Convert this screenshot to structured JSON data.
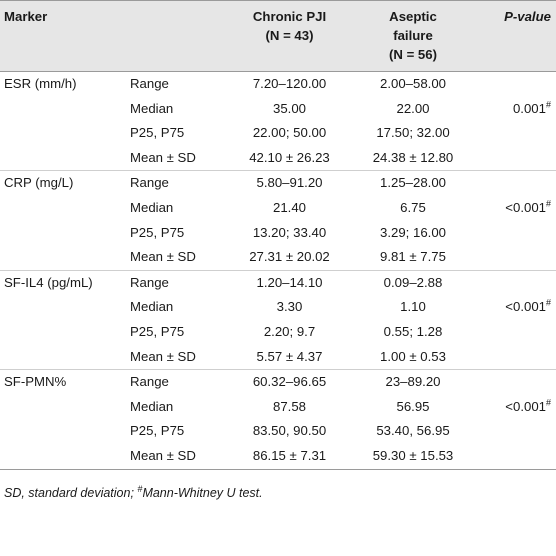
{
  "headers": {
    "marker": "Marker",
    "pji_line1": "Chronic PJI",
    "pji_line2": "(N = 43)",
    "aseptic_line1": "Aseptic",
    "aseptic_line2": "failure",
    "aseptic_line3": "(N = 56)",
    "pvalue": "P-value"
  },
  "groups": [
    {
      "marker": "ESR (mm/h)",
      "pvalue": "0.001",
      "pvalue_sup": "#",
      "rows": [
        {
          "stat": "Range",
          "pji": "7.20–120.00",
          "aseptic": "2.00–58.00"
        },
        {
          "stat": "Median",
          "pji": "35.00",
          "aseptic": "22.00"
        },
        {
          "stat": "P25, P75",
          "pji": "22.00; 50.00",
          "aseptic": "17.50; 32.00"
        },
        {
          "stat": "Mean ± SD",
          "pji": "42.10 ± 26.23",
          "aseptic": "24.38 ± 12.80"
        }
      ]
    },
    {
      "marker": "CRP (mg/L)",
      "pvalue": "<0.001",
      "pvalue_sup": "#",
      "rows": [
        {
          "stat": "Range",
          "pji": "5.80–91.20",
          "aseptic": "1.25–28.00"
        },
        {
          "stat": "Median",
          "pji": "21.40",
          "aseptic": "6.75"
        },
        {
          "stat": "P25, P75",
          "pji": "13.20; 33.40",
          "aseptic": "3.29; 16.00"
        },
        {
          "stat": "Mean ± SD",
          "pji": "27.31 ± 20.02",
          "aseptic": "9.81 ± 7.75"
        }
      ]
    },
    {
      "marker": "SF-IL4 (pg/mL)",
      "pvalue": "<0.001",
      "pvalue_sup": "#",
      "rows": [
        {
          "stat": "Range",
          "pji": "1.20–14.10",
          "aseptic": "0.09–2.88"
        },
        {
          "stat": "Median",
          "pji": "3.30",
          "aseptic": "1.10"
        },
        {
          "stat": "P25, P75",
          "pji": "2.20; 9.7",
          "aseptic": "0.55; 1.28"
        },
        {
          "stat": "Mean ± SD",
          "pji": "5.57 ± 4.37",
          "aseptic": "1.00 ± 0.53"
        }
      ]
    },
    {
      "marker": "SF-PMN%",
      "pvalue": "<0.001",
      "pvalue_sup": "#",
      "rows": [
        {
          "stat": "Range",
          "pji": "60.32–96.65",
          "aseptic": "23–89.20"
        },
        {
          "stat": "Median",
          "pji": "87.58",
          "aseptic": "56.95"
        },
        {
          "stat": "P25, P75",
          "pji": "83.50, 90.50",
          "aseptic": "53.40, 56.95"
        },
        {
          "stat": "Mean ± SD",
          "pji": "86.15 ± 7.31",
          "aseptic": "59.30 ± 15.53"
        }
      ]
    }
  ],
  "footnote": {
    "part1": "SD, standard deviation; ",
    "sup": "#",
    "part2": "Mann-Whitney U test."
  }
}
